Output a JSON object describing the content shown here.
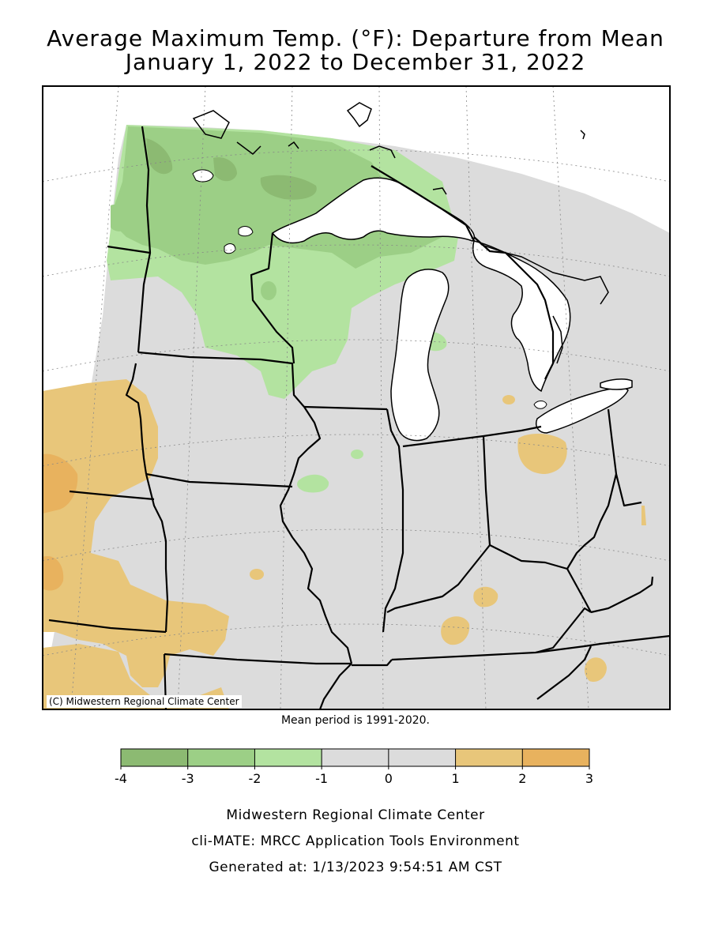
{
  "title": {
    "line1": "Average Maximum Temp. (°F): Departure from Mean",
    "line2": "January 1, 2022 to December 31, 2022"
  },
  "map": {
    "credit": "(C) Midwestern Regional Climate Center",
    "mean_period": "Mean period is 1991-2020.",
    "colors": {
      "cat_-4_-3": "#8cba72",
      "cat_-3_-2": "#9ccf86",
      "cat_-2_-1": "#b3e3a0",
      "cat_-1_1": "#dcdcdc",
      "cat_1_2": "#e8c67a",
      "cat_2_3": "#e8b25e",
      "water": "#ffffff",
      "border": "#000000"
    }
  },
  "legend": {
    "ticks": [
      "-4",
      "-3",
      "-2",
      "-1",
      "0",
      "1",
      "2",
      "3"
    ],
    "bins": [
      {
        "from": -4,
        "to": -3,
        "color": "#8cba72"
      },
      {
        "from": -3,
        "to": -2,
        "color": "#9ccf86"
      },
      {
        "from": -2,
        "to": -1,
        "color": "#b3e3a0"
      },
      {
        "from": -1,
        "to": 0,
        "color": "#dcdcdc"
      },
      {
        "from": 0,
        "to": 1,
        "color": "#dcdcdc"
      },
      {
        "from": 1,
        "to": 2,
        "color": "#e8c67a"
      },
      {
        "from": 2,
        "to": 3,
        "color": "#e8b25e"
      }
    ]
  },
  "footer": {
    "org": "Midwestern Regional Climate Center",
    "tool": "cli-MATE: MRCC Application Tools Environment",
    "generated": "Generated at: 1/13/2023 9:54:51 AM CST"
  }
}
